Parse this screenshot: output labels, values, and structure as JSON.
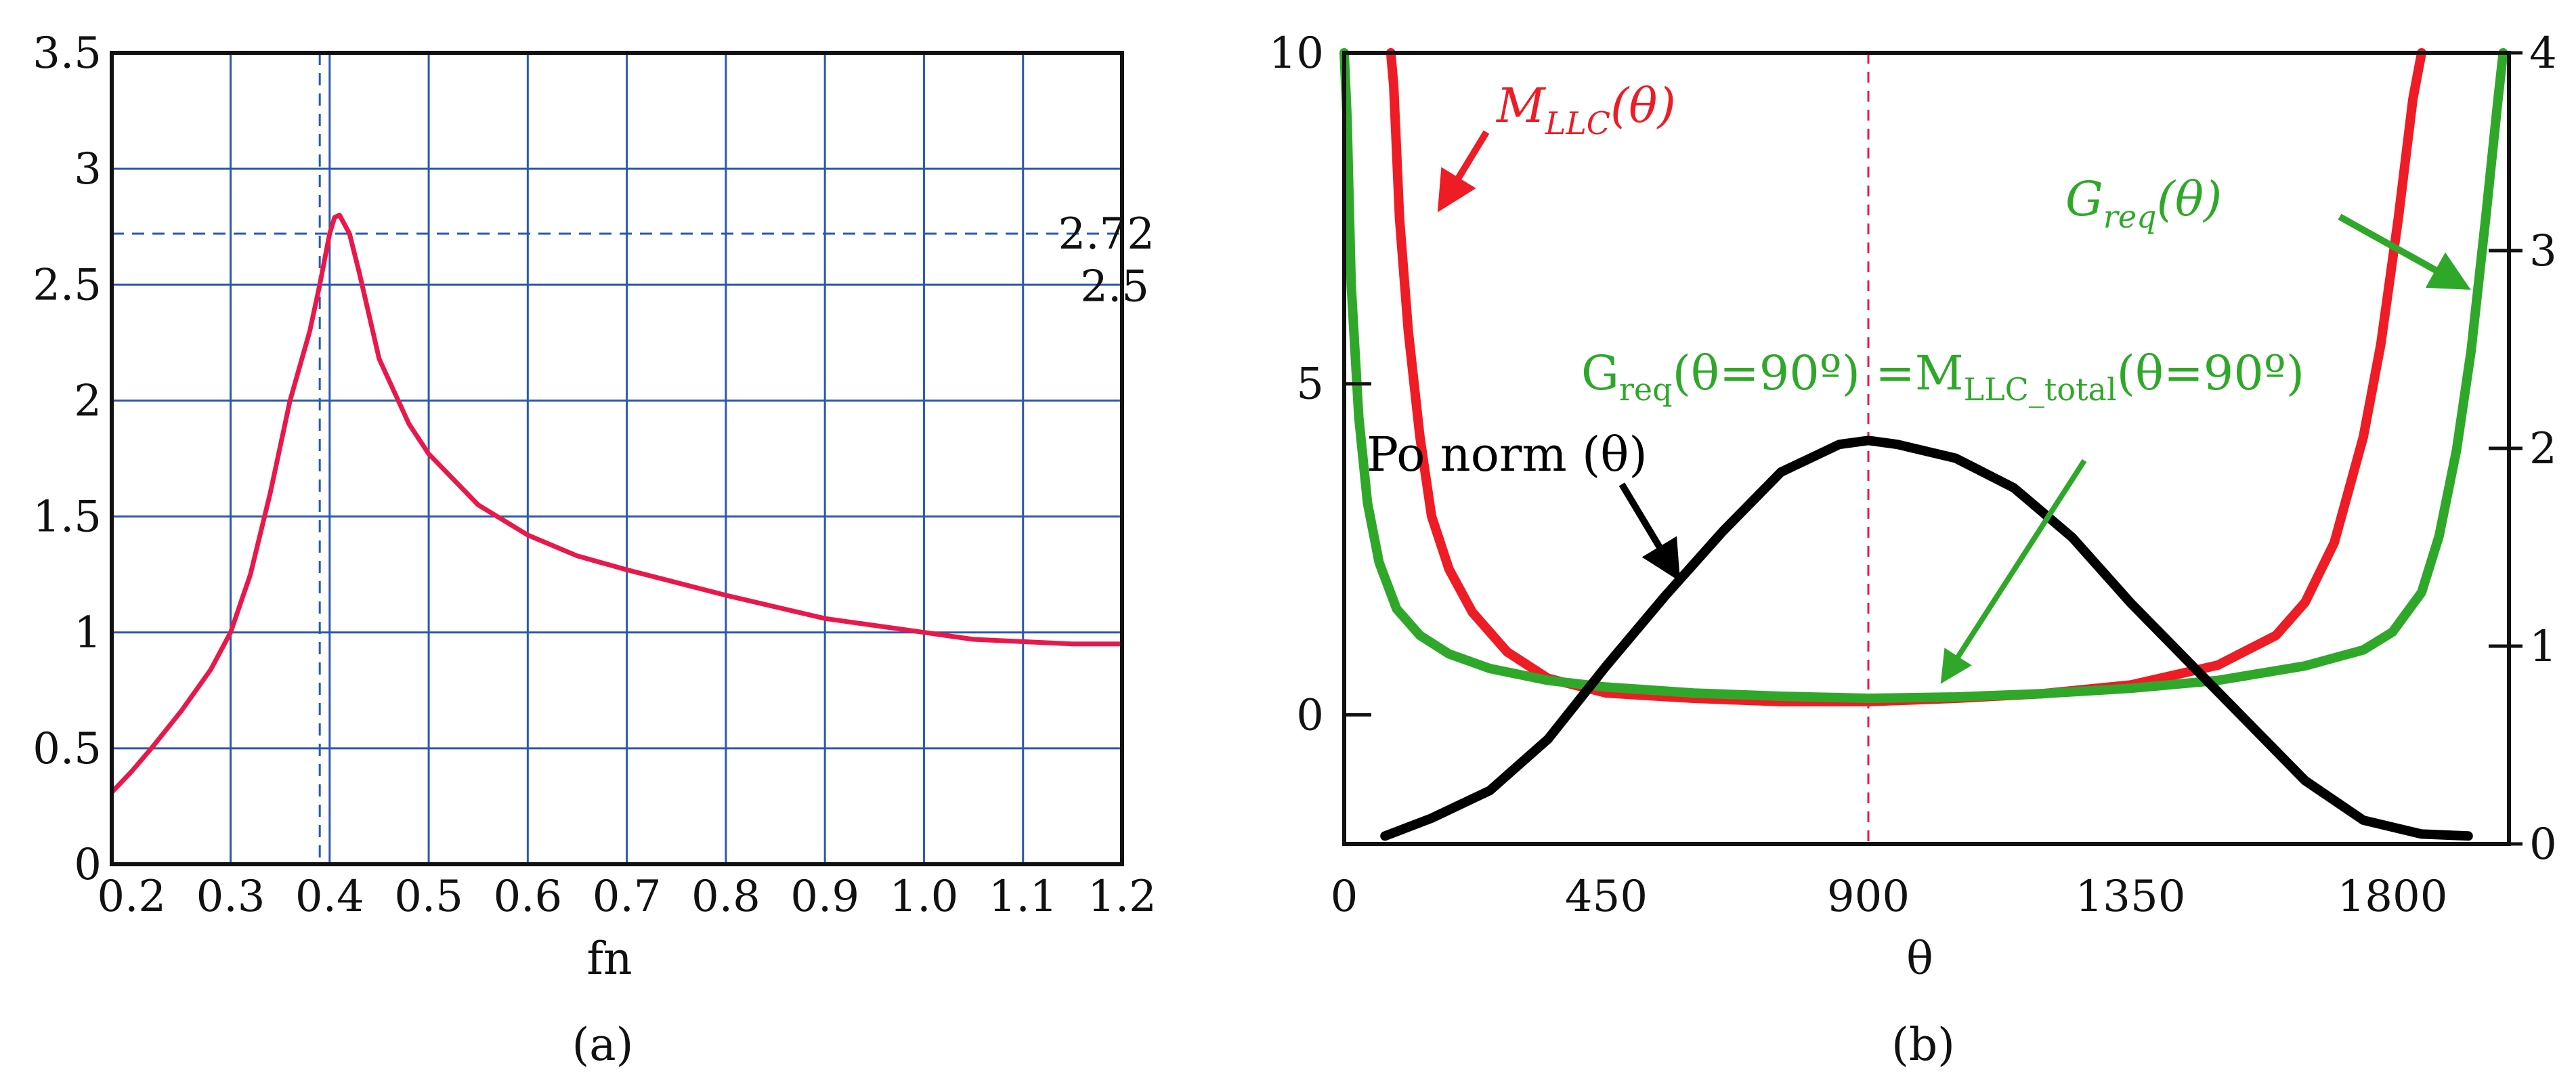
{
  "chart_data": [
    {
      "type": "line",
      "panel_label": "(a)",
      "xlabel": "fn",
      "xlim": [
        0.18,
        1.2
      ],
      "ylim": [
        0,
        3.5
      ],
      "x_ticks": [
        {
          "value": 0.2,
          "label": "0.2"
        },
        {
          "value": 0.3,
          "label": "0.3"
        },
        {
          "value": 0.4,
          "label": "0.4"
        },
        {
          "value": 0.5,
          "label": "0.5"
        },
        {
          "value": 0.6,
          "label": "0.6"
        },
        {
          "value": 0.7,
          "label": "0.7"
        },
        {
          "value": 0.8,
          "label": "0.8"
        },
        {
          "value": 0.9,
          "label": "0.9"
        },
        {
          "value": 1.0,
          "label": "1.0"
        },
        {
          "value": 1.1,
          "label": "1.1"
        },
        {
          "value": 1.2,
          "label": "1.2"
        }
      ],
      "y_ticks": [
        {
          "value": 0,
          "label": "0"
        },
        {
          "value": 0.5,
          "label": "0.5"
        },
        {
          "value": 1,
          "label": "1"
        },
        {
          "value": 1.5,
          "label": "1.5"
        },
        {
          "value": 2,
          "label": "2"
        },
        {
          "value": 2.5,
          "label": "2.5"
        },
        {
          "value": 3,
          "label": "3"
        },
        {
          "value": 3.5,
          "label": "3.5"
        }
      ],
      "grid": true,
      "grid_x": [
        0.3,
        0.4,
        0.5,
        0.6,
        0.7,
        0.8,
        0.9,
        1.0,
        1.1
      ],
      "grid_y": [
        0.5,
        1,
        1.5,
        2,
        2.5,
        3
      ],
      "series": [
        {
          "color": "#e8194a",
          "x": [
            0.18,
            0.2,
            0.22,
            0.25,
            0.28,
            0.3,
            0.32,
            0.34,
            0.36,
            0.38,
            0.39,
            0.4,
            0.405,
            0.41,
            0.42,
            0.43,
            0.45,
            0.48,
            0.5,
            0.55,
            0.6,
            0.65,
            0.7,
            0.8,
            0.9,
            1.0,
            1.05,
            1.1,
            1.15,
            1.2
          ],
          "y": [
            0.31,
            0.4,
            0.5,
            0.66,
            0.84,
            1.0,
            1.25,
            1.6,
            2.0,
            2.3,
            2.5,
            2.72,
            2.79,
            2.8,
            2.72,
            2.55,
            2.18,
            1.9,
            1.77,
            1.55,
            1.42,
            1.33,
            1.27,
            1.16,
            1.06,
            1.0,
            0.97,
            0.96,
            0.95,
            0.95
          ]
        }
      ],
      "reference_lines": [
        {
          "orientation": "vertical",
          "x": 0.39
        },
        {
          "orientation": "horizontal",
          "y": 2.72,
          "label": "2.72"
        }
      ],
      "annotations": [
        {
          "text": "2.5",
          "x": 1.2,
          "y": 2.5
        }
      ]
    },
    {
      "type": "line",
      "panel_label": "(b)",
      "xlabel": "θ",
      "xlim": [
        0,
        2000
      ],
      "ylim": [
        -1.95,
        10
      ],
      "y2lim": [
        0,
        4
      ],
      "x_ticks": [
        {
          "value": 0,
          "label": "0"
        },
        {
          "value": 450,
          "label": "450"
        },
        {
          "value": 900,
          "label": "900"
        },
        {
          "value": 1350,
          "label": "1350"
        },
        {
          "value": 1800,
          "label": "1800"
        }
      ],
      "y_ticks": [
        {
          "value": 0,
          "label": "0"
        },
        {
          "value": 5,
          "label": "5"
        },
        {
          "value": 10,
          "label": "10"
        }
      ],
      "y2_ticks": [
        {
          "value": 0,
          "label": "0"
        },
        {
          "value": 1,
          "label": "1"
        },
        {
          "value": 2,
          "label": "2"
        },
        {
          "value": 3,
          "label": "3"
        },
        {
          "value": 4,
          "label": "4"
        }
      ],
      "grid": false,
      "reference_lines": [
        {
          "orientation": "vertical",
          "x": 900,
          "color": "#e8194a",
          "style": "dashed"
        }
      ],
      "series": [
        {
          "name": "M_LLC(θ)",
          "color": "#ee1c25",
          "axis": "left",
          "x": [
            80,
            85,
            95,
            110,
            130,
            150,
            180,
            220,
            280,
            350,
            450,
            600,
            750,
            900,
            1050,
            1200,
            1350,
            1500,
            1600,
            1650,
            1700,
            1750,
            1780,
            1810,
            1835,
            1850
          ],
          "y": [
            10.0,
            9.5,
            7.5,
            5.8,
            4.2,
            3.0,
            2.2,
            1.55,
            0.95,
            0.55,
            0.33,
            0.25,
            0.2,
            0.2,
            0.25,
            0.32,
            0.45,
            0.75,
            1.2,
            1.7,
            2.6,
            4.2,
            5.6,
            7.5,
            9.3,
            10.0
          ]
        },
        {
          "name": "G_req(θ)",
          "color": "#2fa82a",
          "axis": "left",
          "x": [
            0,
            5,
            12,
            25,
            40,
            60,
            90,
            130,
            180,
            250,
            350,
            450,
            600,
            750,
            900,
            1050,
            1200,
            1350,
            1500,
            1650,
            1750,
            1800,
            1850,
            1880,
            1910,
            1935,
            1960,
            1980,
            1990
          ],
          "y": [
            10.0,
            9.0,
            6.5,
            4.5,
            3.2,
            2.3,
            1.6,
            1.2,
            0.92,
            0.7,
            0.52,
            0.42,
            0.33,
            0.28,
            0.25,
            0.27,
            0.32,
            0.4,
            0.52,
            0.74,
            0.98,
            1.25,
            1.85,
            2.7,
            4.0,
            5.5,
            7.5,
            9.2,
            10.0
          ]
        },
        {
          "name": "Po norm (θ)",
          "color": "#000000",
          "axis": "right",
          "x": [
            70,
            150,
            250,
            350,
            450,
            550,
            650,
            750,
            850,
            900,
            950,
            1050,
            1150,
            1250,
            1350,
            1450,
            1550,
            1650,
            1750,
            1850,
            1930
          ],
          "y": [
            0.04,
            0.13,
            0.27,
            0.53,
            0.9,
            1.25,
            1.58,
            1.88,
            2.02,
            2.04,
            2.02,
            1.95,
            1.8,
            1.55,
            1.22,
            0.92,
            0.62,
            0.32,
            0.12,
            0.05,
            0.04
          ]
        }
      ],
      "annotations": {
        "mllc": {
          "main": "M",
          "sub": "LLC",
          "tail": "(θ)"
        },
        "greq": {
          "main": "G",
          "sub": "req",
          "tail": "(θ)"
        },
        "greq90": {
          "g": "G",
          "g_sub": "req",
          "mid": "(θ=90º) =M",
          "m_sub": "LLC_total",
          "tail": "(θ=90º)"
        },
        "ponorm": "Po norm (θ)"
      }
    }
  ]
}
